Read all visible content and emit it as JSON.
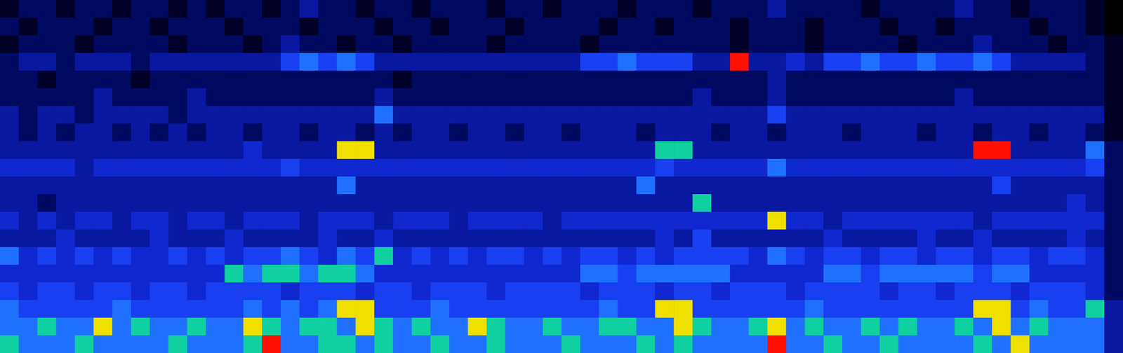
{
  "chart_data": {
    "type": "heatmap",
    "tick_labels": false,
    "zlim": [
      0,
      9
    ],
    "cells": [
      [
        1,
        2,
        2,
        1,
        2,
        2,
        1,
        2,
        2,
        1,
        2,
        1,
        2,
        2,
        1,
        2,
        3,
        2,
        2,
        1,
        2,
        2,
        1,
        2,
        2,
        2,
        1,
        2,
        2,
        1,
        2,
        2,
        2,
        1,
        2,
        2,
        2,
        1,
        2,
        2,
        2,
        3,
        2,
        2,
        2,
        2,
        1,
        2,
        2,
        2,
        2,
        3,
        2,
        2,
        1,
        2,
        2,
        2,
        1,
        0
      ],
      [
        2,
        1,
        2,
        2,
        2,
        1,
        2,
        2,
        1,
        2,
        2,
        2,
        1,
        2,
        2,
        2,
        1,
        2,
        2,
        2,
        1,
        2,
        2,
        1,
        2,
        2,
        2,
        1,
        2,
        2,
        2,
        2,
        1,
        2,
        2,
        1,
        2,
        2,
        2,
        1,
        2,
        2,
        2,
        1,
        2,
        2,
        2,
        1,
        2,
        2,
        1,
        2,
        2,
        2,
        2,
        1,
        2,
        2,
        1,
        0
      ],
      [
        1,
        2,
        2,
        2,
        1,
        2,
        2,
        2,
        2,
        1,
        2,
        2,
        2,
        1,
        2,
        3,
        2,
        2,
        1,
        2,
        2,
        1,
        2,
        2,
        2,
        2,
        1,
        2,
        2,
        2,
        2,
        1,
        2,
        2,
        2,
        2,
        2,
        2,
        2,
        1,
        2,
        2,
        2,
        1,
        2,
        2,
        2,
        2,
        1,
        2,
        2,
        2,
        3,
        2,
        2,
        2,
        1,
        2,
        2,
        1
      ],
      [
        2,
        3,
        3,
        2,
        3,
        3,
        3,
        2,
        3,
        3,
        3,
        3,
        3,
        3,
        3,
        5,
        6,
        5,
        6,
        5,
        3,
        3,
        3,
        3,
        3,
        3,
        3,
        3,
        3,
        3,
        3,
        5,
        5,
        6,
        5,
        5,
        5,
        3,
        3,
        9,
        3,
        3,
        4,
        3,
        5,
        5,
        6,
        5,
        5,
        6,
        5,
        5,
        6,
        5,
        3,
        3,
        3,
        3,
        2,
        1
      ],
      [
        2,
        2,
        1,
        2,
        2,
        2,
        2,
        1,
        2,
        2,
        2,
        2,
        2,
        2,
        2,
        2,
        2,
        2,
        2,
        2,
        2,
        1,
        2,
        2,
        2,
        2,
        2,
        2,
        2,
        2,
        2,
        2,
        2,
        2,
        2,
        2,
        2,
        2,
        2,
        2,
        2,
        3,
        2,
        2,
        2,
        2,
        2,
        2,
        2,
        2,
        2,
        2,
        2,
        2,
        2,
        2,
        2,
        2,
        2,
        1
      ],
      [
        2,
        2,
        2,
        2,
        2,
        3,
        2,
        2,
        2,
        2,
        3,
        2,
        2,
        2,
        2,
        2,
        2,
        2,
        2,
        2,
        3,
        2,
        2,
        2,
        2,
        2,
        2,
        2,
        2,
        2,
        2,
        2,
        2,
        2,
        2,
        2,
        2,
        3,
        2,
        2,
        2,
        3,
        2,
        2,
        2,
        2,
        2,
        2,
        2,
        2,
        2,
        3,
        2,
        2,
        2,
        2,
        2,
        2,
        2,
        1
      ],
      [
        3,
        2,
        3,
        3,
        2,
        3,
        3,
        3,
        3,
        2,
        3,
        3,
        3,
        3,
        3,
        3,
        3,
        3,
        3,
        3,
        6,
        3,
        3,
        3,
        3,
        3,
        3,
        3,
        3,
        3,
        3,
        3,
        3,
        3,
        3,
        3,
        3,
        3,
        3,
        3,
        3,
        5,
        3,
        3,
        3,
        3,
        3,
        3,
        3,
        3,
        3,
        3,
        3,
        3,
        3,
        3,
        3,
        3,
        3,
        1
      ],
      [
        3,
        2,
        3,
        2,
        3,
        3,
        2,
        3,
        2,
        3,
        2,
        3,
        3,
        2,
        3,
        3,
        2,
        3,
        3,
        2,
        3,
        2,
        3,
        3,
        2,
        3,
        3,
        2,
        3,
        3,
        2,
        3,
        3,
        3,
        2,
        3,
        3,
        3,
        2,
        3,
        3,
        2,
        3,
        3,
        3,
        2,
        3,
        3,
        3,
        2,
        3,
        3,
        2,
        3,
        3,
        2,
        3,
        3,
        2,
        1
      ],
      [
        3,
        3,
        3,
        3,
        3,
        3,
        3,
        3,
        3,
        3,
        3,
        3,
        3,
        4,
        3,
        3,
        3,
        3,
        8,
        8,
        3,
        3,
        3,
        3,
        3,
        3,
        3,
        3,
        3,
        3,
        3,
        3,
        3,
        3,
        3,
        7,
        7,
        3,
        3,
        3,
        3,
        3,
        3,
        3,
        3,
        3,
        3,
        3,
        3,
        3,
        3,
        3,
        9,
        9,
        3,
        3,
        3,
        3,
        6,
        2
      ],
      [
        4,
        4,
        4,
        4,
        3,
        4,
        4,
        4,
        4,
        4,
        4,
        4,
        4,
        4,
        4,
        5,
        4,
        4,
        4,
        4,
        4,
        4,
        4,
        4,
        4,
        4,
        4,
        4,
        4,
        4,
        4,
        4,
        4,
        4,
        4,
        5,
        4,
        4,
        4,
        4,
        4,
        6,
        4,
        4,
        4,
        4,
        4,
        4,
        4,
        4,
        4,
        4,
        4,
        4,
        4,
        4,
        4,
        4,
        5,
        2
      ],
      [
        3,
        3,
        3,
        3,
        3,
        3,
        3,
        3,
        3,
        3,
        3,
        3,
        3,
        3,
        3,
        3,
        3,
        3,
        6,
        3,
        3,
        3,
        3,
        3,
        3,
        3,
        3,
        3,
        3,
        3,
        3,
        3,
        3,
        3,
        6,
        3,
        3,
        3,
        3,
        3,
        3,
        3,
        3,
        3,
        3,
        3,
        3,
        3,
        3,
        3,
        3,
        3,
        3,
        5,
        3,
        3,
        3,
        3,
        3,
        2
      ],
      [
        3,
        3,
        2,
        3,
        3,
        3,
        3,
        3,
        3,
        3,
        3,
        3,
        3,
        3,
        3,
        3,
        3,
        3,
        3,
        3,
        3,
        3,
        3,
        3,
        3,
        3,
        3,
        3,
        3,
        3,
        3,
        3,
        3,
        3,
        3,
        3,
        3,
        7,
        3,
        3,
        3,
        3,
        3,
        3,
        3,
        3,
        3,
        3,
        3,
        3,
        3,
        3,
        3,
        3,
        3,
        3,
        3,
        4,
        3,
        2
      ],
      [
        4,
        3,
        4,
        3,
        4,
        4,
        3,
        4,
        4,
        3,
        4,
        4,
        3,
        4,
        4,
        4,
        3,
        4,
        4,
        4,
        3,
        4,
        4,
        4,
        3,
        4,
        4,
        4,
        4,
        3,
        4,
        4,
        4,
        4,
        4,
        4,
        4,
        4,
        4,
        4,
        4,
        8,
        4,
        4,
        3,
        4,
        4,
        4,
        4,
        4,
        4,
        4,
        3,
        4,
        4,
        4,
        4,
        4,
        4,
        2
      ],
      [
        3,
        3,
        3,
        4,
        3,
        3,
        3,
        3,
        4,
        3,
        3,
        3,
        4,
        3,
        3,
        3,
        3,
        4,
        3,
        3,
        4,
        3,
        3,
        3,
        3,
        3,
        3,
        3,
        3,
        3,
        3,
        3,
        3,
        3,
        3,
        4,
        3,
        5,
        3,
        3,
        3,
        3,
        3,
        3,
        4,
        3,
        3,
        3,
        3,
        4,
        3,
        3,
        4,
        3,
        3,
        3,
        3,
        4,
        3,
        2
      ],
      [
        6,
        4,
        5,
        4,
        5,
        4,
        5,
        4,
        4,
        5,
        4,
        5,
        4,
        5,
        5,
        6,
        5,
        4,
        6,
        5,
        7,
        4,
        5,
        4,
        5,
        4,
        5,
        5,
        4,
        5,
        4,
        5,
        5,
        4,
        5,
        4,
        5,
        5,
        5,
        5,
        4,
        6,
        5,
        4,
        5,
        5,
        4,
        5,
        5,
        4,
        5,
        5,
        4,
        5,
        5,
        4,
        5,
        5,
        4,
        2
      ],
      [
        4,
        4,
        4,
        4,
        4,
        4,
        4,
        4,
        4,
        4,
        4,
        4,
        7,
        6,
        7,
        7,
        6,
        7,
        7,
        6,
        4,
        4,
        4,
        4,
        4,
        4,
        4,
        4,
        4,
        4,
        4,
        6,
        6,
        5,
        6,
        6,
        6,
        6,
        6,
        4,
        4,
        4,
        4,
        4,
        6,
        6,
        5,
        6,
        6,
        6,
        6,
        6,
        5,
        6,
        6,
        4,
        4,
        4,
        4,
        2
      ],
      [
        5,
        4,
        5,
        5,
        4,
        5,
        5,
        4,
        5,
        5,
        4,
        5,
        5,
        5,
        5,
        4,
        5,
        5,
        5,
        4,
        5,
        5,
        4,
        5,
        5,
        5,
        4,
        5,
        5,
        5,
        5,
        4,
        5,
        5,
        5,
        4,
        5,
        5,
        4,
        5,
        5,
        5,
        4,
        5,
        5,
        5,
        5,
        4,
        5,
        5,
        4,
        5,
        5,
        5,
        4,
        5,
        5,
        5,
        4,
        2
      ],
      [
        6,
        5,
        5,
        5,
        5,
        5,
        6,
        5,
        5,
        5,
        5,
        5,
        5,
        6,
        5,
        6,
        5,
        6,
        8,
        8,
        5,
        5,
        5,
        6,
        5,
        5,
        5,
        5,
        5,
        5,
        5,
        5,
        6,
        5,
        5,
        8,
        8,
        5,
        5,
        5,
        5,
        5,
        5,
        6,
        5,
        5,
        5,
        5,
        5,
        5,
        5,
        5,
        8,
        8,
        5,
        6,
        5,
        5,
        7,
        3
      ],
      [
        6,
        6,
        7,
        6,
        6,
        8,
        6,
        7,
        6,
        6,
        7,
        6,
        6,
        8,
        7,
        6,
        7,
        7,
        6,
        8,
        7,
        6,
        7,
        6,
        6,
        8,
        7,
        6,
        6,
        7,
        6,
        6,
        7,
        7,
        6,
        6,
        8,
        7,
        6,
        6,
        7,
        8,
        6,
        7,
        6,
        6,
        7,
        6,
        7,
        6,
        6,
        7,
        6,
        8,
        6,
        7,
        6,
        6,
        6,
        3
      ],
      [
        7,
        6,
        6,
        6,
        7,
        6,
        6,
        6,
        6,
        7,
        6,
        6,
        6,
        7,
        9,
        6,
        6,
        7,
        7,
        6,
        7,
        6,
        6,
        7,
        6,
        6,
        7,
        6,
        6,
        6,
        7,
        6,
        6,
        6,
        7,
        6,
        7,
        6,
        6,
        6,
        6,
        9,
        6,
        6,
        7,
        6,
        6,
        7,
        6,
        6,
        6,
        6,
        7,
        6,
        8,
        6,
        6,
        6,
        6,
        3
      ]
    ]
  }
}
